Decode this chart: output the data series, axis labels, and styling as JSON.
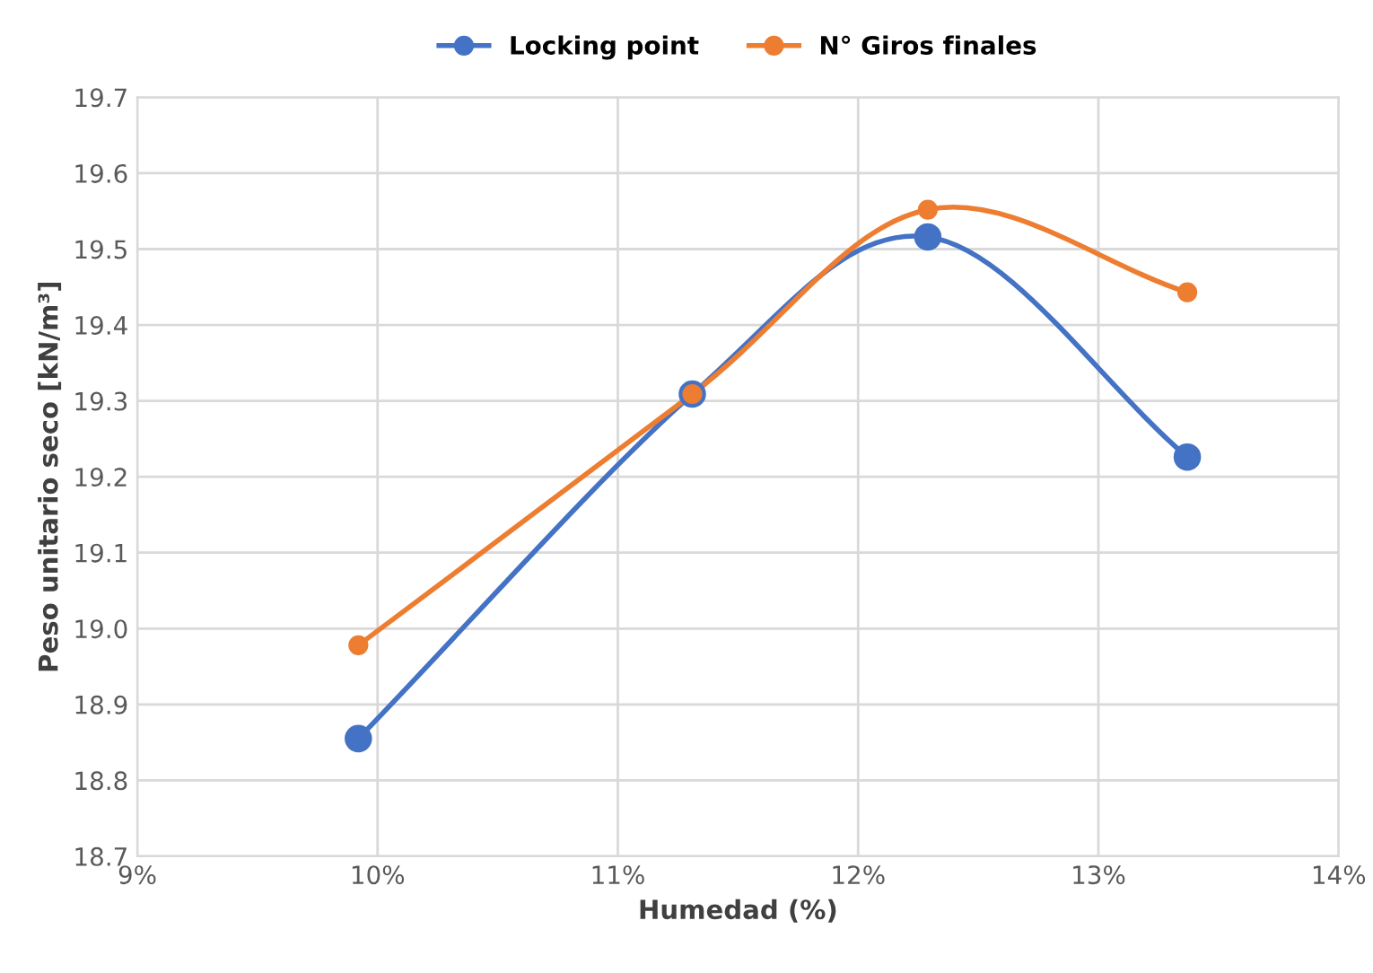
{
  "chart_data": {
    "type": "line",
    "xlabel": "Humedad (%)",
    "ylabel": "Peso unitario seco [kN/m³]",
    "x": [
      9.92,
      11.31,
      12.29,
      13.37
    ],
    "series": [
      {
        "name": "Locking point",
        "color": "#4472c4",
        "values": [
          18.855,
          19.309,
          19.516,
          19.226
        ]
      },
      {
        "name": "N° Giros finales",
        "color": "#ed7d31",
        "values": [
          18.978,
          19.309,
          19.552,
          19.443
        ]
      }
    ],
    "xlim": [
      9,
      14
    ],
    "xticks": [
      {
        "value": 9,
        "label": "9%"
      },
      {
        "value": 10,
        "label": "10%"
      },
      {
        "value": 11,
        "label": "11%"
      },
      {
        "value": 12,
        "label": "12%"
      },
      {
        "value": 13,
        "label": "13%"
      },
      {
        "value": 14,
        "label": "14%"
      }
    ],
    "ylim": [
      18.7,
      19.7
    ],
    "yticks": [
      {
        "value": 18.7,
        "label": "18.7"
      },
      {
        "value": 18.8,
        "label": "18.8"
      },
      {
        "value": 18.9,
        "label": "18.9"
      },
      {
        "value": 19.0,
        "label": "19.0"
      },
      {
        "value": 19.1,
        "label": "19.1"
      },
      {
        "value": 19.2,
        "label": "19.2"
      },
      {
        "value": 19.3,
        "label": "19.3"
      },
      {
        "value": 19.4,
        "label": "19.4"
      },
      {
        "value": 19.5,
        "label": "19.5"
      },
      {
        "value": 19.6,
        "label": "19.6"
      },
      {
        "value": 19.7,
        "label": "19.7"
      }
    ],
    "grid": true,
    "legend": "top",
    "marker": "circle",
    "line_style": "solid"
  }
}
